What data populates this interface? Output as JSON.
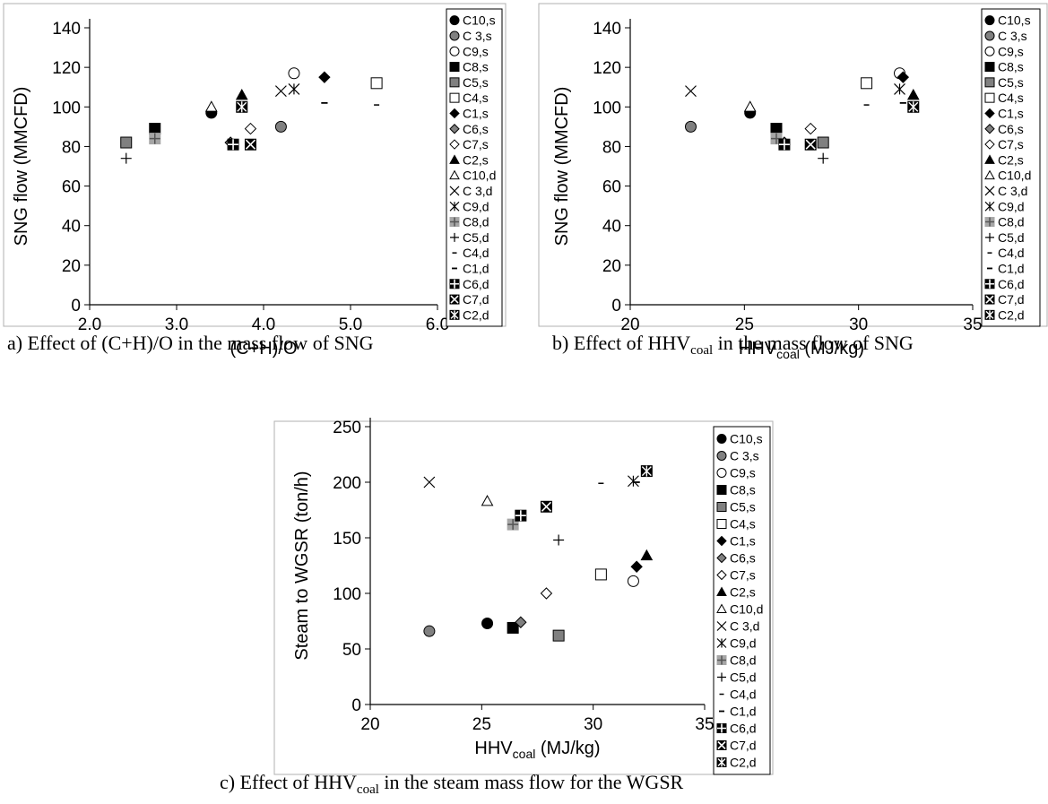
{
  "legend_series": [
    {
      "name": "C10,s",
      "marker": "circle",
      "fill": "#000000"
    },
    {
      "name": "C 3,s",
      "marker": "circle",
      "fill": "#808080"
    },
    {
      "name": "C9,s",
      "marker": "circle",
      "fill": "#ffffff"
    },
    {
      "name": "C8,s",
      "marker": "square",
      "fill": "#000000"
    },
    {
      "name": "C5,s",
      "marker": "square",
      "fill": "#808080"
    },
    {
      "name": "C4,s",
      "marker": "square",
      "fill": "#ffffff"
    },
    {
      "name": "C1,s",
      "marker": "diamond",
      "fill": "#000000"
    },
    {
      "name": "C6,s",
      "marker": "diamond",
      "fill": "#808080"
    },
    {
      "name": "C7,s",
      "marker": "diamond",
      "fill": "#ffffff"
    },
    {
      "name": "C2,s",
      "marker": "triangle",
      "fill": "#000000"
    },
    {
      "name": "C10,d",
      "marker": "triangle",
      "fill": "#ffffff"
    },
    {
      "name": "C 3,d",
      "marker": "x"
    },
    {
      "name": "C9,d",
      "marker": "star"
    },
    {
      "name": "C8,d",
      "marker": "grayplus"
    },
    {
      "name": "C5,d",
      "marker": "plus"
    },
    {
      "name": "C4,d",
      "marker": "dash"
    },
    {
      "name": "C1,d",
      "marker": "longdash"
    },
    {
      "name": "C6,d",
      "marker": "crossbox"
    },
    {
      "name": "C7,d",
      "marker": "xbox"
    },
    {
      "name": "C2,d",
      "marker": "starbox"
    }
  ],
  "chart_data": [
    {
      "type": "scatter",
      "id": "a",
      "caption": "a) Effect of (C+H)/O in the mass flow of SNG",
      "xlabel": "(C+H)/O",
      "ylabel": "SNG flow (MMCFD)",
      "xlim": [
        2.0,
        6.0
      ],
      "ylim": [
        0,
        140
      ],
      "xticks": [
        "2.0",
        "3.0",
        "4.0",
        "5.0",
        "6.0"
      ],
      "yticks": [
        "0",
        "20",
        "40",
        "60",
        "80",
        "100",
        "120",
        "140"
      ],
      "points": [
        {
          "series": "C10,s",
          "x": 3.4,
          "y": 97
        },
        {
          "series": "C 3,s",
          "x": 4.2,
          "y": 90
        },
        {
          "series": "C9,s",
          "x": 4.35,
          "y": 117
        },
        {
          "series": "C8,s",
          "x": 2.75,
          "y": 89
        },
        {
          "series": "C5,s",
          "x": 2.42,
          "y": 82
        },
        {
          "series": "C4,s",
          "x": 5.3,
          "y": 112
        },
        {
          "series": "C1,s",
          "x": 4.7,
          "y": 115
        },
        {
          "series": "C6,s",
          "x": 3.62,
          "y": 82
        },
        {
          "series": "C7,s",
          "x": 3.85,
          "y": 89
        },
        {
          "series": "C2,s",
          "x": 3.75,
          "y": 106
        },
        {
          "series": "C10,d",
          "x": 3.4,
          "y": 100
        },
        {
          "series": "C 3,d",
          "x": 4.2,
          "y": 108
        },
        {
          "series": "C9,d",
          "x": 4.35,
          "y": 109
        },
        {
          "series": "C8,d",
          "x": 2.75,
          "y": 84
        },
        {
          "series": "C5,d",
          "x": 2.42,
          "y": 74
        },
        {
          "series": "C4,d",
          "x": 5.3,
          "y": 101
        },
        {
          "series": "C1,d",
          "x": 4.7,
          "y": 102
        },
        {
          "series": "C6,d",
          "x": 3.65,
          "y": 81
        },
        {
          "series": "C7,d",
          "x": 3.85,
          "y": 81
        },
        {
          "series": "C2,d",
          "x": 3.75,
          "y": 100
        }
      ]
    },
    {
      "type": "scatter",
      "id": "b",
      "caption_main": "b) Effect of HHV",
      "caption_sub": "coal",
      "caption_tail": " in the mass flow of SNG",
      "xlabel_main": "HHV",
      "xlabel_sub": "coal",
      "xlabel_tail": " (MJ/kg)",
      "ylabel": "SNG flow (MMCFD)",
      "xlim": [
        20,
        35
      ],
      "ylim": [
        0,
        140
      ],
      "xticks": [
        "20",
        "25",
        "30",
        "35"
      ],
      "yticks": [
        "0",
        "20",
        "40",
        "60",
        "80",
        "100",
        "120",
        "140"
      ],
      "points": [
        {
          "series": "C10,s",
          "x": 25.25,
          "y": 97
        },
        {
          "series": "C 3,s",
          "x": 22.65,
          "y": 90
        },
        {
          "series": "C9,s",
          "x": 31.8,
          "y": 117
        },
        {
          "series": "C8,s",
          "x": 26.4,
          "y": 89
        },
        {
          "series": "C5,s",
          "x": 28.45,
          "y": 82
        },
        {
          "series": "C4,s",
          "x": 30.35,
          "y": 112
        },
        {
          "series": "C1,s",
          "x": 31.95,
          "y": 115
        },
        {
          "series": "C6,s",
          "x": 26.75,
          "y": 82
        },
        {
          "series": "C7,s",
          "x": 27.9,
          "y": 89
        },
        {
          "series": "C2,s",
          "x": 32.4,
          "y": 106
        },
        {
          "series": "C10,d",
          "x": 25.25,
          "y": 100
        },
        {
          "series": "C 3,d",
          "x": 22.65,
          "y": 108
        },
        {
          "series": "C9,d",
          "x": 31.8,
          "y": 109
        },
        {
          "series": "C8,d",
          "x": 26.4,
          "y": 84
        },
        {
          "series": "C5,d",
          "x": 28.45,
          "y": 74
        },
        {
          "series": "C4,d",
          "x": 30.35,
          "y": 101
        },
        {
          "series": "C1,d",
          "x": 31.95,
          "y": 102
        },
        {
          "series": "C6,d",
          "x": 26.75,
          "y": 81
        },
        {
          "series": "C7,d",
          "x": 27.9,
          "y": 81
        },
        {
          "series": "C2,d",
          "x": 32.4,
          "y": 100
        }
      ]
    },
    {
      "type": "scatter",
      "id": "c",
      "caption_main": "c) Effect of HHV",
      "caption_sub": "coal",
      "caption_tail": " in the steam mass flow for the WGSR",
      "xlabel_main": "HHV",
      "xlabel_sub": "coal",
      "xlabel_tail": " (MJ/kg)",
      "ylabel": "Steam to WGSR (ton/h)",
      "xlim": [
        20,
        35
      ],
      "ylim": [
        0,
        250
      ],
      "xticks": [
        "20",
        "25",
        "30",
        "35"
      ],
      "yticks": [
        "0",
        "50",
        "100",
        "150",
        "200",
        "250"
      ],
      "points": [
        {
          "series": "C10,s",
          "x": 25.25,
          "y": 73
        },
        {
          "series": "C 3,s",
          "x": 22.65,
          "y": 66
        },
        {
          "series": "C9,s",
          "x": 31.8,
          "y": 111
        },
        {
          "series": "C8,s",
          "x": 26.4,
          "y": 69
        },
        {
          "series": "C5,s",
          "x": 28.45,
          "y": 62
        },
        {
          "series": "C4,s",
          "x": 30.35,
          "y": 117
        },
        {
          "series": "C1,s",
          "x": 31.95,
          "y": 124
        },
        {
          "series": "C6,s",
          "x": 26.75,
          "y": 74
        },
        {
          "series": "C7,s",
          "x": 27.9,
          "y": 100
        },
        {
          "series": "C2,s",
          "x": 32.4,
          "y": 134
        },
        {
          "series": "C10,d",
          "x": 25.25,
          "y": 183
        },
        {
          "series": "C 3,d",
          "x": 22.65,
          "y": 200
        },
        {
          "series": "C9,d",
          "x": 31.8,
          "y": 201
        },
        {
          "series": "C8,d",
          "x": 26.4,
          "y": 162
        },
        {
          "series": "C5,d",
          "x": 28.45,
          "y": 148
        },
        {
          "series": "C4,d",
          "x": 30.35,
          "y": 199
        },
        {
          "series": "C1,d",
          "x": 31.95,
          "y": 200
        },
        {
          "series": "C6,d",
          "x": 26.75,
          "y": 170
        },
        {
          "series": "C7,d",
          "x": 27.9,
          "y": 178
        },
        {
          "series": "C2,d",
          "x": 32.4,
          "y": 210
        }
      ]
    }
  ]
}
